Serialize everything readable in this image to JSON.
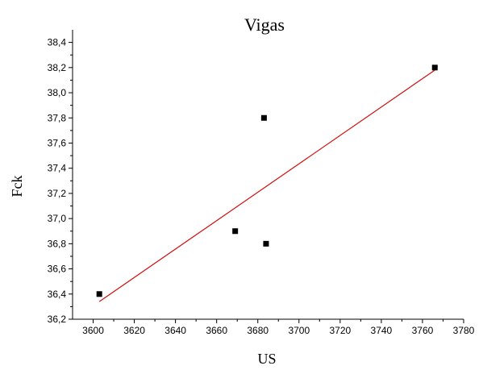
{
  "chart_data": {
    "type": "scatter",
    "title": "Vigas",
    "xlabel": "US",
    "ylabel": "Fck",
    "xlim": [
      3590,
      3780
    ],
    "ylim": [
      36.2,
      38.5
    ],
    "x_ticks": [
      3600,
      3620,
      3640,
      3660,
      3680,
      3700,
      3720,
      3740,
      3760,
      3780
    ],
    "x_tick_labels": [
      "3600",
      "3620",
      "3640",
      "3660",
      "3680",
      "3700",
      "3720",
      "3740",
      "3760",
      "3780"
    ],
    "y_ticks": [
      36.2,
      36.4,
      36.6,
      36.8,
      37.0,
      37.2,
      37.4,
      37.6,
      37.8,
      38.0,
      38.2,
      38.4
    ],
    "y_tick_labels": [
      "36,2",
      "36,4",
      "36,6",
      "36,8",
      "37,0",
      "37,2",
      "37,4",
      "37,6",
      "37,8",
      "38,0",
      "38,2",
      "38,4"
    ],
    "grid": false,
    "points": [
      {
        "x": 3603,
        "y": 36.4
      },
      {
        "x": 3669,
        "y": 36.9
      },
      {
        "x": 3683,
        "y": 37.8
      },
      {
        "x": 3684,
        "y": 36.8
      },
      {
        "x": 3766,
        "y": 38.2
      }
    ],
    "fit_line": {
      "x": [
        3603,
        3766
      ],
      "y": [
        36.34,
        38.18
      ]
    },
    "colors": {
      "points": "#000000",
      "fit_line": "#d01010"
    }
  }
}
